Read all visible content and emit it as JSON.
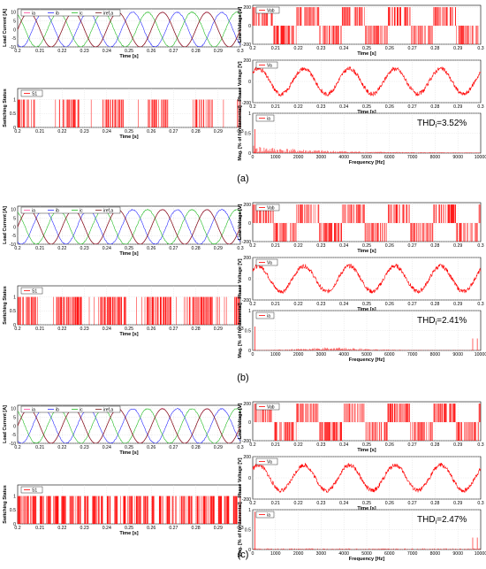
{
  "colors": {
    "ia": "#ff4fa0",
    "ib": "#2a2aff",
    "ic": "#22bb22",
    "iref": "#7a1a1a",
    "red": "#ff0000",
    "grid": "#d8d8d8",
    "axis": "#000000",
    "plot_bg": "#ffffff"
  },
  "chart_data": [
    {
      "panel": "(a)",
      "caption": "(a)",
      "thd_text": "THD",
      "thd_sub": "i",
      "thd_value": "=3.52%",
      "load_current": {
        "type": "line",
        "ylabel": "Load Current [A]",
        "xlabel": "Time [s]",
        "xlim": [
          0.2,
          0.3
        ],
        "ylim": [
          -10,
          12
        ],
        "yticks": [
          -10,
          -5,
          0,
          5,
          10
        ],
        "xticks": [
          "0.2",
          "0.21",
          "0.22",
          "0.23",
          "0.24",
          "0.25",
          "0.26",
          "0.27",
          "0.28",
          "0.29",
          "0.3"
        ],
        "legend": [
          "ia",
          "ib",
          "ic",
          "iref,a"
        ],
        "amplitude": 10,
        "frequency_hz": 50
      },
      "switching": {
        "type": "line",
        "ylabel": "Switching Status",
        "xlabel": "Time [s]",
        "xlim": [
          0.2,
          0.3
        ],
        "ylim": [
          0,
          1.4
        ],
        "yticks": [
          0,
          0.5,
          1
        ],
        "xticks": [
          "0.2",
          "0.21",
          "0.22",
          "0.23",
          "0.24",
          "0.25",
          "0.26",
          "0.27",
          "0.28",
          "0.29",
          "0.3"
        ],
        "legend": [
          "S1"
        ],
        "pattern": "low_frequency",
        "seed": 11
      },
      "line_voltage": {
        "type": "line",
        "ylabel": "Line Voltage [V]",
        "xlabel": "Time [s]",
        "xlim": [
          0.2,
          0.3
        ],
        "ylim": [
          -200,
          220
        ],
        "yticks": [
          -200,
          0,
          200
        ],
        "xticks": [
          "0.2",
          "0.21",
          "0.22",
          "0.23",
          "0.24",
          "0.25",
          "0.26",
          "0.27",
          "0.28",
          "0.29",
          "0.3"
        ],
        "legend": [
          "Vab"
        ],
        "seed": 21
      },
      "phase_voltage": {
        "type": "line",
        "ylabel": "Phase Voltage [V]",
        "xlabel": "Time [s]",
        "xlim": [
          0.2,
          0.3
        ],
        "ylim": [
          -200,
          200
        ],
        "yticks": [
          -200,
          0,
          200
        ],
        "xticks": [
          "0.2",
          "0.21",
          "0.22",
          "0.23",
          "0.24",
          "0.25",
          "0.26",
          "0.27",
          "0.28",
          "0.29",
          "0.3"
        ],
        "legend": [
          "Va"
        ],
        "seed": 31
      },
      "spectrum": {
        "type": "bar",
        "ylabel": "Mag. [% of fundamental]",
        "xlabel": "Frequency [Hz]",
        "xlim": [
          0,
          10000
        ],
        "ylim": [
          0,
          1
        ],
        "yticks": [
          0,
          0.5,
          1
        ],
        "xticks": [
          "0",
          "1000",
          "2000",
          "3000",
          "4000",
          "5000",
          "6000",
          "7000",
          "8000",
          "9000",
          "10000"
        ],
        "legend": [
          "ia"
        ],
        "profile": "low_decay",
        "seed": 41
      }
    },
    {
      "panel": "(b)",
      "caption": "(b)",
      "thd_text": "THD",
      "thd_sub": "i",
      "thd_value": "=2.41%",
      "load_current": {
        "type": "line",
        "ylabel": "Load Current [A]",
        "xlabel": "Time [s]",
        "xlim": [
          0.2,
          0.3
        ],
        "ylim": [
          -10,
          12
        ],
        "yticks": [
          -10,
          -5,
          0,
          5,
          10
        ],
        "xticks": [
          "0.2",
          "0.21",
          "0.22",
          "0.23",
          "0.24",
          "0.25",
          "0.26",
          "0.27",
          "0.28",
          "0.29",
          "0.3"
        ],
        "legend": [
          "ia",
          "ib",
          "ic",
          "iref,a"
        ],
        "amplitude": 10,
        "frequency_hz": 50
      },
      "switching": {
        "type": "line",
        "ylabel": "Switching Status",
        "xlabel": "Time [s]",
        "xlim": [
          0.2,
          0.3
        ],
        "ylim": [
          0,
          1.4
        ],
        "yticks": [
          0,
          0.5,
          1
        ],
        "xticks": [
          "0.2",
          "0.21",
          "0.22",
          "0.23",
          "0.24",
          "0.25",
          "0.26",
          "0.27",
          "0.28",
          "0.29",
          "0.3"
        ],
        "legend": [
          "S1"
        ],
        "pattern": "medium_frequency",
        "seed": 12
      },
      "line_voltage": {
        "type": "line",
        "ylabel": "Line Voltage [V]",
        "xlabel": "Time [s]",
        "xlim": [
          0.2,
          0.3
        ],
        "ylim": [
          -200,
          220
        ],
        "yticks": [
          -200,
          0,
          200
        ],
        "xticks": [
          "0.2",
          "0.21",
          "0.22",
          "0.23",
          "0.24",
          "0.25",
          "0.26",
          "0.27",
          "0.28",
          "0.29",
          "0.3"
        ],
        "legend": [
          "Vab"
        ],
        "seed": 22
      },
      "phase_voltage": {
        "type": "line",
        "ylabel": "Phase Voltage [V]",
        "xlabel": "Time [s]",
        "xlim": [
          0.2,
          0.3
        ],
        "ylim": [
          -200,
          200
        ],
        "yticks": [
          -200,
          0,
          200
        ],
        "xticks": [
          "0.2",
          "0.21",
          "0.22",
          "0.23",
          "0.24",
          "0.25",
          "0.26",
          "0.27",
          "0.28",
          "0.29",
          "0.3"
        ],
        "legend": [
          "Va"
        ],
        "seed": 32
      },
      "spectrum": {
        "type": "bar",
        "ylabel": "Mag. [% of fundamental]",
        "xlabel": "Frequency [Hz]",
        "xlim": [
          0,
          10000
        ],
        "ylim": [
          0,
          1
        ],
        "yticks": [
          0,
          0.5,
          1
        ],
        "xticks": [
          "0",
          "1000",
          "2000",
          "3000",
          "4000",
          "5000",
          "6000",
          "7000",
          "8000",
          "9000",
          "10000"
        ],
        "legend": [
          "ia"
        ],
        "profile": "mid_hump",
        "seed": 42
      }
    },
    {
      "panel": "(c)",
      "caption": "(c)",
      "thd_text": "THD",
      "thd_sub": "i",
      "thd_value": "=2.47%",
      "load_current": {
        "type": "line",
        "ylabel": "Load Current [A]",
        "xlabel": "Time [s]",
        "xlim": [
          0.2,
          0.3
        ],
        "ylim": [
          -10,
          12
        ],
        "yticks": [
          -10,
          -5,
          0,
          5,
          10
        ],
        "xticks": [
          "0.2",
          "0.21",
          "0.22",
          "0.23",
          "0.24",
          "0.25",
          "0.26",
          "0.27",
          "0.28",
          "0.29",
          "0.3"
        ],
        "legend": [
          "ia",
          "ib",
          "ic",
          "iref,a"
        ],
        "amplitude": 10,
        "frequency_hz": 50
      },
      "switching": {
        "type": "line",
        "ylabel": "Switching Status",
        "xlabel": "Time [s]",
        "xlim": [
          0.2,
          0.3
        ],
        "ylim": [
          0,
          1.4
        ],
        "yticks": [
          0,
          0.5,
          1
        ],
        "xticks": [
          "0.2",
          "0.21",
          "0.22",
          "0.23",
          "0.24",
          "0.25",
          "0.26",
          "0.27",
          "0.28",
          "0.29",
          "0.3"
        ],
        "legend": [
          "S1"
        ],
        "pattern": "regular",
        "seed": 13
      },
      "line_voltage": {
        "type": "line",
        "ylabel": "Line Voltage [V]",
        "xlabel": "Time [s]",
        "xlim": [
          0.2,
          0.3
        ],
        "ylim": [
          -200,
          220
        ],
        "yticks": [
          -200,
          0,
          200
        ],
        "xticks": [
          "0.2",
          "0.21",
          "0.22",
          "0.23",
          "0.24",
          "0.25",
          "0.26",
          "0.27",
          "0.28",
          "0.29",
          "0.3"
        ],
        "legend": [
          "Vab"
        ],
        "seed": 23
      },
      "phase_voltage": {
        "type": "line",
        "ylabel": "Phase Voltage [V]",
        "xlabel": "Time [s]",
        "xlim": [
          0.2,
          0.3
        ],
        "ylim": [
          -200,
          200
        ],
        "yticks": [
          -200,
          0,
          200
        ],
        "xticks": [
          "0.2",
          "0.21",
          "0.22",
          "0.23",
          "0.24",
          "0.25",
          "0.26",
          "0.27",
          "0.28",
          "0.29",
          "0.3"
        ],
        "legend": [
          "Va"
        ],
        "seed": 33
      },
      "spectrum": {
        "type": "bar",
        "ylabel": "Mag. [% of fundamental]",
        "xlabel": "Frequency [Hz]",
        "xlim": [
          0,
          10000
        ],
        "ylim": [
          0,
          1
        ],
        "yticks": [
          0,
          0.5,
          1
        ],
        "xticks": [
          "0",
          "1000",
          "2000",
          "3000",
          "4000",
          "5000",
          "6000",
          "7000",
          "8000",
          "9000",
          "10000"
        ],
        "legend": [
          "ia"
        ],
        "profile": "flat_edges",
        "seed": 43
      }
    }
  ]
}
